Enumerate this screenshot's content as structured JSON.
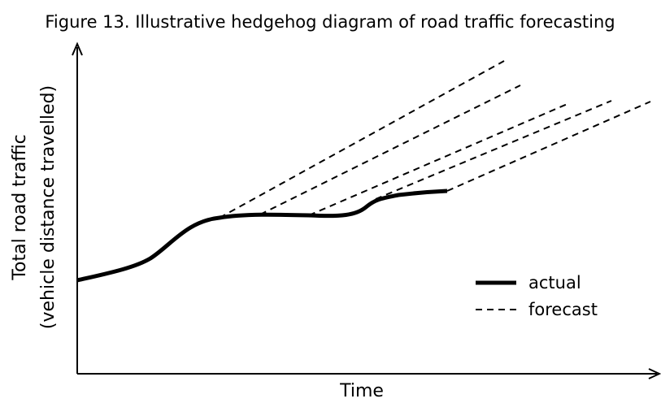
{
  "title": "Figure 13. Illustrative hedgehog diagram of road traffic forecasting",
  "axes": {
    "y_label": [
      "Total road traffic",
      "(vehicle distance travelled)"
    ],
    "x_label": "Time"
  },
  "legend": {
    "actual": "actual",
    "forecast": "forecast"
  }
}
